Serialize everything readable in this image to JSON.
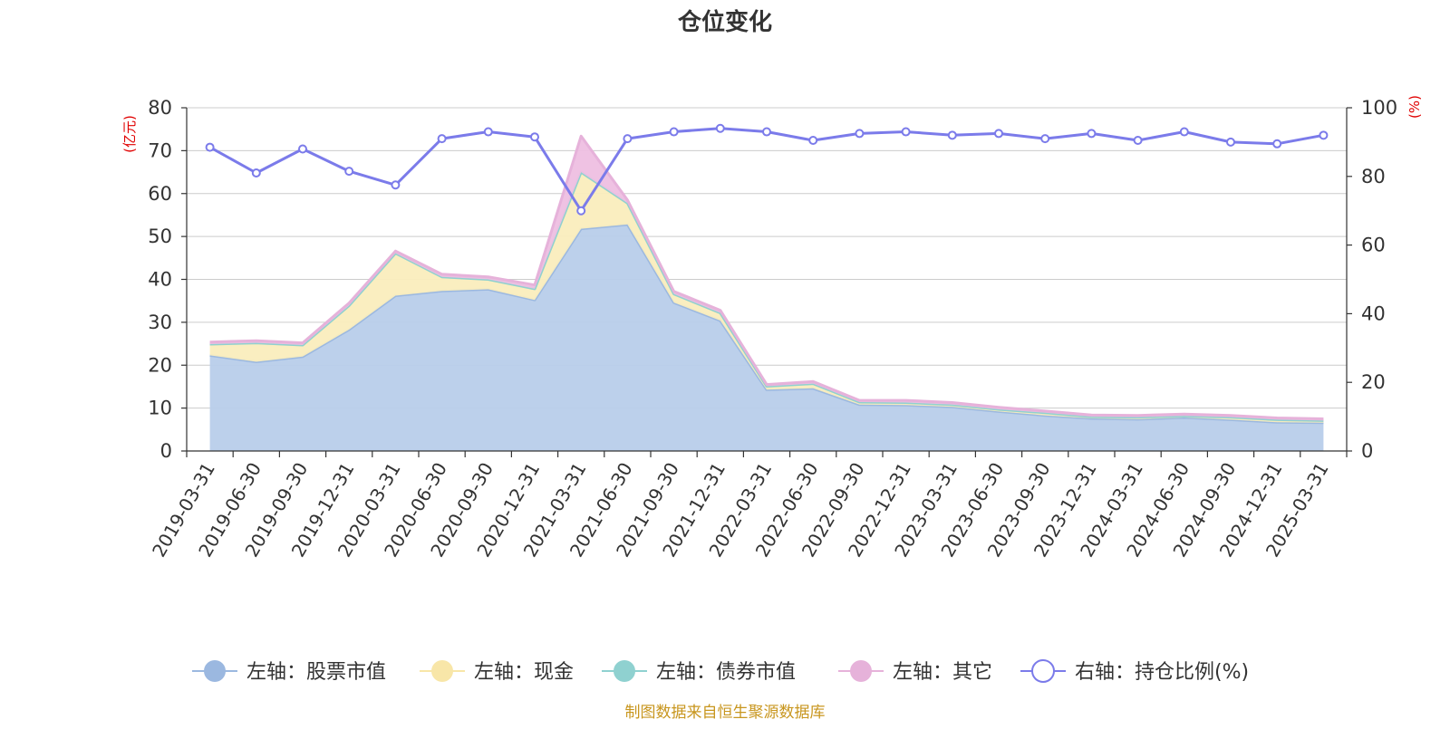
{
  "chart_data": {
    "type": "area",
    "title": "仓位变化",
    "left_axis_unit": "(亿元)",
    "right_axis_unit": "(%)",
    "ylim_left": [
      0,
      80
    ],
    "yticks_left": [
      0,
      10,
      20,
      30,
      40,
      50,
      60,
      70,
      80
    ],
    "ylim_right": [
      0,
      100
    ],
    "yticks_right": [
      0,
      20,
      40,
      60,
      80,
      100
    ],
    "grid": true,
    "legend_position": "bottom-center",
    "categories": [
      "2019-03-31",
      "2019-06-30",
      "2019-09-30",
      "2019-12-31",
      "2020-03-31",
      "2020-06-30",
      "2020-09-30",
      "2020-12-31",
      "2021-03-31",
      "2021-06-30",
      "2021-09-30",
      "2021-12-31",
      "2022-03-31",
      "2022-06-30",
      "2022-09-30",
      "2022-12-31",
      "2023-03-31",
      "2023-06-30",
      "2023-09-30",
      "2023-12-31",
      "2024-03-31",
      "2024-06-30",
      "2024-09-30",
      "2024-12-31",
      "2025-03-31"
    ],
    "series": [
      {
        "name": "左轴：股票市值",
        "axis": "left",
        "stacked": true,
        "color": "#9bb8e0",
        "fill": "#b8cdea",
        "values": [
          22.3,
          20.8,
          22.0,
          28.3,
          36.2,
          37.3,
          37.7,
          35.2,
          51.8,
          52.8,
          34.6,
          30.4,
          14.3,
          14.6,
          10.8,
          10.7,
          10.3,
          9.2,
          8.3,
          7.6,
          7.4,
          7.8,
          7.3,
          6.7,
          6.6
        ]
      },
      {
        "name": "左轴：现金",
        "axis": "left",
        "stacked": true,
        "color": "#f8e6a8",
        "fill": "#faedbd",
        "values": [
          2.6,
          4.4,
          2.7,
          5.6,
          9.9,
          3.3,
          2.3,
          2.6,
          13.2,
          5.0,
          2.0,
          1.8,
          0.8,
          1.1,
          0.6,
          0.6,
          0.5,
          0.5,
          0.6,
          0.4,
          0.5,
          0.4,
          0.6,
          0.6,
          0.5
        ]
      },
      {
        "name": "左轴：债券市值",
        "axis": "left",
        "stacked": true,
        "color": "#8fd1d0",
        "fill": "#a5dbda",
        "values": [
          0,
          0,
          0,
          0,
          0,
          0,
          0,
          0,
          0,
          0,
          0,
          0,
          0,
          0,
          0,
          0,
          0,
          0,
          0,
          0,
          0,
          0,
          0,
          0,
          0
        ]
      },
      {
        "name": "左轴：其它",
        "axis": "left",
        "stacked": true,
        "color": "#e6b2da",
        "fill": "#eebfe2",
        "values": [
          0.5,
          0.5,
          0.5,
          0.6,
          0.5,
          0.6,
          0.6,
          0.9,
          8.4,
          0.7,
          0.6,
          0.6,
          0.4,
          0.5,
          0.4,
          0.5,
          0.5,
          0.5,
          0.4,
          0.4,
          0.4,
          0.4,
          0.4,
          0.4,
          0.4
        ]
      },
      {
        "name": "右轴：持仓比例(%)",
        "axis": "right",
        "stacked": false,
        "color": "#7b7bea",
        "values": [
          88.5,
          81.0,
          88.0,
          81.5,
          77.5,
          91.0,
          93.0,
          91.5,
          70.0,
          91.0,
          93.0,
          94.0,
          93.0,
          90.5,
          92.5,
          93.0,
          92.0,
          92.5,
          91.0,
          92.5,
          90.5,
          93.0,
          90.0,
          89.5,
          92.0
        ]
      }
    ]
  },
  "footer": {
    "source": "制图数据来自恒生聚源数据库"
  },
  "colors": {
    "title": "#333333",
    "axis_label": "#333333",
    "unit_label": "#e00000",
    "grid": "#cccccc",
    "source": "#c8961e"
  }
}
